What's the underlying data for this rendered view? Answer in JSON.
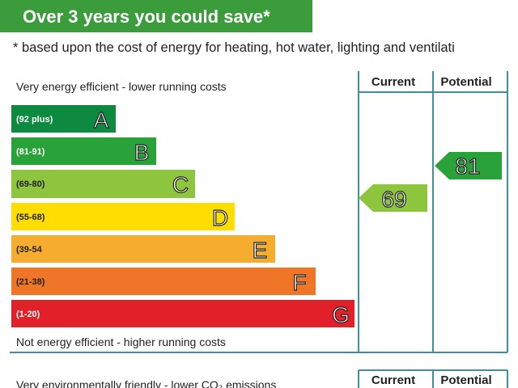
{
  "header": {
    "title": "Over 3 years you could save*"
  },
  "note": "* based upon the cost of energy for heating, hot water, lighting and ventilati",
  "energy_chart": {
    "top_label": "Very energy efficient - lower running costs",
    "bottom_label": "Not energy efficient - higher running costs",
    "columns": [
      "Current",
      "Potential"
    ],
    "bands": [
      {
        "range": "(92 plus)",
        "letter": "A"
      },
      {
        "range": "(81-91)",
        "letter": "B"
      },
      {
        "range": "(69-80)",
        "letter": "C"
      },
      {
        "range": "(55-68)",
        "letter": "D"
      },
      {
        "range": "(39-54",
        "letter": "E"
      },
      {
        "range": "(21-38)",
        "letter": "F"
      },
      {
        "range": "(1-20)",
        "letter": "G"
      }
    ],
    "current": 69,
    "potential": 81
  },
  "environmental_chart": {
    "top_label": "Very environmentally friendly - lower CO₂ emissions",
    "columns": [
      "Current",
      "Potential"
    ]
  }
}
